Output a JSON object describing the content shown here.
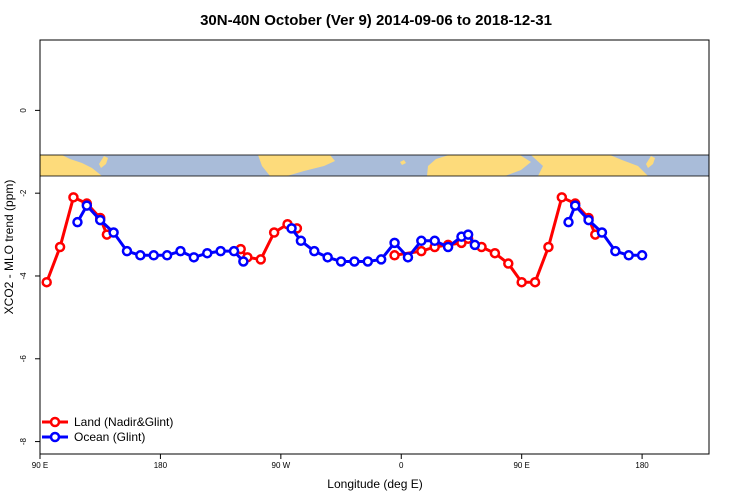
{
  "chart_data": {
    "type": "line",
    "title": "30N-40N October (Ver 9)   2014-09-06 to 2018-12-31",
    "xlabel": "Longitude (deg E)",
    "ylabel": "XCO2 - MLO trend (ppm)",
    "xlim": [
      90,
      590
    ],
    "ylim": [
      -8.3,
      1.7
    ],
    "x_ticks": [
      {
        "value": 90,
        "label": "90 E"
      },
      {
        "value": 180,
        "label": "180"
      },
      {
        "value": 270,
        "label": "90 W"
      },
      {
        "value": 360,
        "label": "0"
      },
      {
        "value": 450,
        "label": "90 E"
      },
      {
        "value": 540,
        "label": "180"
      }
    ],
    "y_ticks": [
      {
        "value": 0,
        "label": "0"
      },
      {
        "value": -2,
        "label": "-2"
      },
      {
        "value": -4,
        "label": "-4"
      },
      {
        "value": -6,
        "label": "-6"
      },
      {
        "value": -8,
        "label": "-8"
      }
    ],
    "legend_position": "bottom-left",
    "colors": {
      "land": "#ff0000",
      "ocean": "#0000ff",
      "map_ocean": "#a9bcd9",
      "map_land": "#fddb7b"
    },
    "series": [
      {
        "name": "Land (Nadir&Glint)",
        "color": "#ff0000",
        "segments": [
          [
            [
              95,
              -4.15
            ],
            [
              105,
              -3.3
            ],
            [
              115,
              -2.1
            ],
            [
              125,
              -2.25
            ],
            [
              135,
              -2.6
            ],
            [
              140,
              -3.0
            ]
          ],
          [
            [
              240,
              -3.35
            ],
            [
              245,
              -3.55
            ],
            [
              255,
              -3.6
            ],
            [
              265,
              -2.95
            ],
            [
              275,
              -2.75
            ],
            [
              282,
              -2.85
            ]
          ],
          [
            [
              355,
              -3.5
            ],
            [
              375,
              -3.4
            ],
            [
              385,
              -3.3
            ],
            [
              395,
              -3.25
            ],
            [
              405,
              -3.2
            ],
            [
              410,
              -3.1
            ],
            [
              420,
              -3.3
            ],
            [
              430,
              -3.45
            ],
            [
              440,
              -3.7
            ],
            [
              450,
              -4.15
            ],
            [
              460,
              -4.15
            ],
            [
              470,
              -3.3
            ],
            [
              480,
              -2.1
            ],
            [
              490,
              -2.25
            ],
            [
              500,
              -2.6
            ],
            [
              505,
              -3.0
            ]
          ]
        ]
      },
      {
        "name": "Ocean (Glint)",
        "color": "#0000ff",
        "segments": [
          [
            [
              118,
              -2.7
            ],
            [
              125,
              -2.3
            ],
            [
              135,
              -2.65
            ],
            [
              145,
              -2.95
            ],
            [
              155,
              -3.4
            ],
            [
              165,
              -3.5
            ],
            [
              175,
              -3.5
            ],
            [
              185,
              -3.5
            ],
            [
              195,
              -3.4
            ],
            [
              205,
              -3.55
            ],
            [
              215,
              -3.45
            ],
            [
              225,
              -3.4
            ],
            [
              235,
              -3.4
            ],
            [
              242,
              -3.65
            ]
          ],
          [
            [
              278,
              -2.85
            ],
            [
              285,
              -3.15
            ],
            [
              295,
              -3.4
            ],
            [
              305,
              -3.55
            ],
            [
              315,
              -3.65
            ],
            [
              325,
              -3.65
            ],
            [
              335,
              -3.65
            ],
            [
              345,
              -3.6
            ],
            [
              355,
              -3.2
            ],
            [
              365,
              -3.55
            ],
            [
              375,
              -3.15
            ],
            [
              385,
              -3.15
            ],
            [
              395,
              -3.3
            ],
            [
              405,
              -3.05
            ],
            [
              410,
              -3.0
            ],
            [
              415,
              -3.25
            ]
          ],
          [
            [
              485,
              -2.7
            ],
            [
              490,
              -2.3
            ],
            [
              500,
              -2.65
            ],
            [
              510,
              -2.95
            ],
            [
              520,
              -3.4
            ],
            [
              530,
              -3.5
            ],
            [
              540,
              -3.5
            ]
          ]
        ]
      }
    ]
  }
}
